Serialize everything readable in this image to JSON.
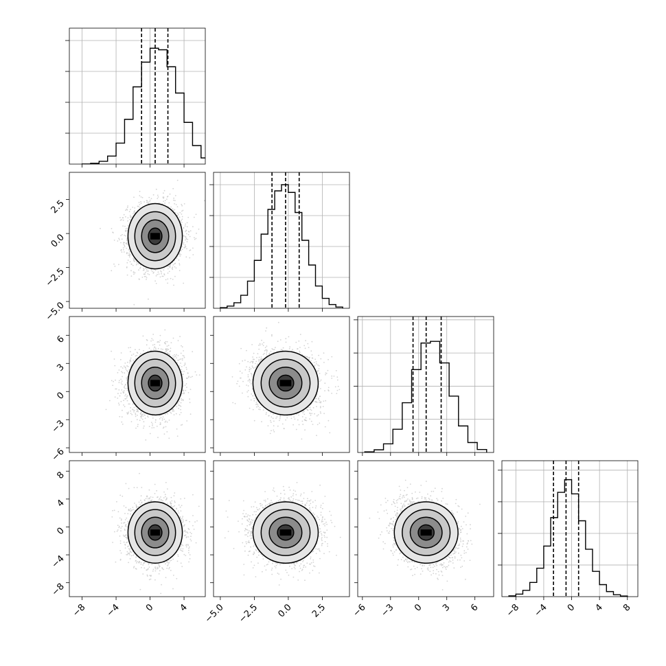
{
  "chart_data": {
    "type": "corner",
    "variables": [
      {
        "range": [
          -9.5,
          6.5
        ],
        "ticks": [
          -8,
          -4,
          0,
          4
        ],
        "tick_labels": [
          "−8",
          "−4",
          "0",
          "4"
        ],
        "quantiles": [
          -1.0,
          0.6,
          2.1
        ],
        "hist_bins": [
          {
            "x": -7.5,
            "count": 5
          },
          {
            "x": -6.5,
            "count": 25
          },
          {
            "x": -5.5,
            "count": 90
          },
          {
            "x": -4.5,
            "count": 260
          },
          {
            "x": -3.5,
            "count": 680
          },
          {
            "x": -2.5,
            "count": 1450
          },
          {
            "x": -1.5,
            "count": 2500
          },
          {
            "x": -0.5,
            "count": 3300
          },
          {
            "x": 0.5,
            "count": 3750
          },
          {
            "x": 1.5,
            "count": 3700
          },
          {
            "x": 2.5,
            "count": 3150
          },
          {
            "x": 3.5,
            "count": 2300
          },
          {
            "x": 4.5,
            "count": 1350
          },
          {
            "x": 5.5,
            "count": 600
          },
          {
            "x": 6.5,
            "count": 200
          }
        ],
        "hist_max": 4400
      },
      {
        "range": [
          -5.5,
          4.5
        ],
        "ticks": [
          -5.0,
          -2.5,
          0.0,
          2.5
        ],
        "tick_labels": [
          "−5.0",
          "−2.5",
          "0.0",
          "2.5"
        ],
        "quantiles": [
          -1.2,
          -0.2,
          0.8
        ],
        "hist_bins": [
          {
            "x": -4.75,
            "count": 20
          },
          {
            "x": -4.25,
            "count": 70
          },
          {
            "x": -3.75,
            "count": 180
          },
          {
            "x": -3.25,
            "count": 420
          },
          {
            "x": -2.75,
            "count": 880
          },
          {
            "x": -2.25,
            "count": 1550
          },
          {
            "x": -1.75,
            "count": 2400
          },
          {
            "x": -1.25,
            "count": 3200
          },
          {
            "x": -0.75,
            "count": 3800
          },
          {
            "x": -0.25,
            "count": 4000
          },
          {
            "x": 0.25,
            "count": 3750
          },
          {
            "x": 0.75,
            "count": 3100
          },
          {
            "x": 1.25,
            "count": 2200
          },
          {
            "x": 1.75,
            "count": 1400
          },
          {
            "x": 2.25,
            "count": 720
          },
          {
            "x": 2.75,
            "count": 320
          },
          {
            "x": 3.25,
            "count": 120
          },
          {
            "x": 3.75,
            "count": 40
          }
        ],
        "hist_max": 4400
      },
      {
        "range": [
          -6.5,
          8
        ],
        "ticks": [
          -6,
          -3,
          0,
          3,
          6
        ],
        "tick_labels": [
          "−6",
          "−3",
          "0",
          "3",
          "6"
        ],
        "quantiles": [
          -0.6,
          0.8,
          2.4
        ],
        "hist_bins": [
          {
            "x": -5.25,
            "count": 20
          },
          {
            "x": -4.25,
            "count": 80
          },
          {
            "x": -3.25,
            "count": 260
          },
          {
            "x": -2.25,
            "count": 700
          },
          {
            "x": -1.25,
            "count": 1500
          },
          {
            "x": -0.25,
            "count": 2500
          },
          {
            "x": 0.75,
            "count": 3300
          },
          {
            "x": 1.75,
            "count": 3350
          },
          {
            "x": 2.75,
            "count": 2700
          },
          {
            "x": 3.75,
            "count": 1700
          },
          {
            "x": 4.75,
            "count": 800
          },
          {
            "x": 5.75,
            "count": 300
          },
          {
            "x": 6.75,
            "count": 90
          }
        ],
        "hist_max": 4100
      },
      {
        "range": [
          -10,
          9.5
        ],
        "ticks": [
          -8,
          -4,
          0,
          4,
          8
        ],
        "tick_labels": [
          "−8",
          "−4",
          "0",
          "4",
          "8"
        ],
        "quantiles": [
          -2.6,
          -0.8,
          1.0
        ],
        "hist_bins": [
          {
            "x": -8.5,
            "count": 25
          },
          {
            "x": -7.5,
            "count": 80
          },
          {
            "x": -6.5,
            "count": 200
          },
          {
            "x": -5.5,
            "count": 450
          },
          {
            "x": -4.5,
            "count": 900
          },
          {
            "x": -3.5,
            "count": 1600
          },
          {
            "x": -2.5,
            "count": 2500
          },
          {
            "x": -1.5,
            "count": 3300
          },
          {
            "x": -0.5,
            "count": 3700
          },
          {
            "x": 0.5,
            "count": 3250
          },
          {
            "x": 1.5,
            "count": 2400
          },
          {
            "x": 2.5,
            "count": 1500
          },
          {
            "x": 3.5,
            "count": 800
          },
          {
            "x": 4.5,
            "count": 380
          },
          {
            "x": 5.5,
            "count": 160
          },
          {
            "x": 6.5,
            "count": 60
          },
          {
            "x": 7.5,
            "count": 20
          }
        ],
        "hist_max": 4300
      }
    ],
    "pairs": [
      {
        "row": 1,
        "col": 0,
        "center": [
          0.6,
          -0.2
        ],
        "sigma": [
          1.6,
          1.2
        ],
        "rho": 0.0
      },
      {
        "row": 2,
        "col": 0,
        "center": [
          0.6,
          0.9
        ],
        "sigma": [
          1.6,
          1.7
        ],
        "rho": 0.05
      },
      {
        "row": 2,
        "col": 1,
        "center": [
          -0.2,
          0.9
        ],
        "sigma": [
          1.2,
          1.7
        ],
        "rho": -0.1
      },
      {
        "row": 3,
        "col": 0,
        "center": [
          0.6,
          -0.8
        ],
        "sigma": [
          1.6,
          2.2
        ],
        "rho": 0.0
      },
      {
        "row": 3,
        "col": 1,
        "center": [
          -0.2,
          -0.8
        ],
        "sigma": [
          1.2,
          2.2
        ],
        "rho": 0.0
      },
      {
        "row": 3,
        "col": 2,
        "center": [
          0.8,
          -0.8
        ],
        "sigma": [
          1.7,
          2.2
        ],
        "rho": -0.15
      }
    ],
    "contour_levels_sigma": [
      0.5,
      1.0,
      1.5,
      2.0
    ],
    "grid": true,
    "colors": {
      "line": "#000000",
      "grid": "#b0b0b0",
      "points": "#c8c8c8"
    }
  }
}
